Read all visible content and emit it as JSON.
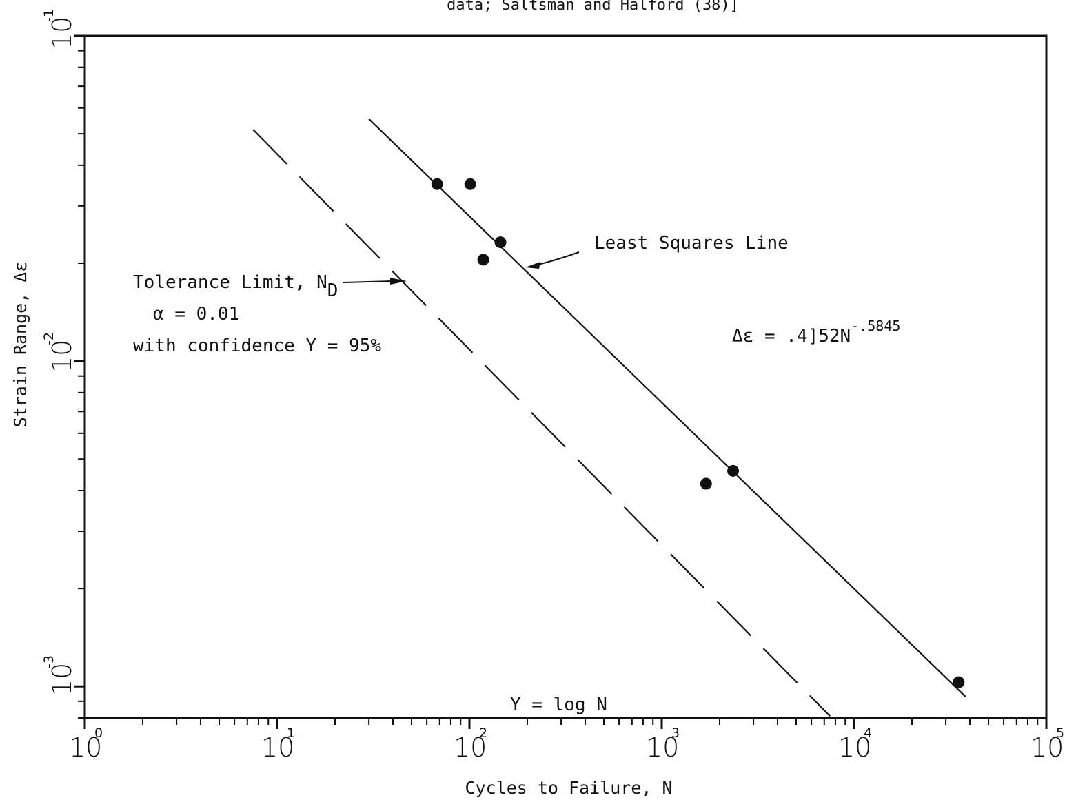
{
  "chart_data": {
    "type": "scatter",
    "title": "data; Saltsman and Halford (38)]",
    "xlabel": "Cycles to Failure, N",
    "ylabel": "Strain Range, Δε",
    "x_scale": "log",
    "y_scale": "log",
    "xlim": [
      1,
      100000
    ],
    "ylim": [
      0.0008,
      0.1
    ],
    "grid": false,
    "x_ticks": [
      {
        "base": "10",
        "exp": "0",
        "value": 1
      },
      {
        "base": "10",
        "exp": "1",
        "value": 10
      },
      {
        "base": "10",
        "exp": "2",
        "value": 100
      },
      {
        "base": "10",
        "exp": "3",
        "value": 1000
      },
      {
        "base": "10",
        "exp": "4",
        "value": 10000
      },
      {
        "base": "10",
        "exp": "5",
        "value": 100000
      }
    ],
    "y_ticks": [
      {
        "base": "10",
        "exp": "-1",
        "value": 0.1
      },
      {
        "base": "10",
        "exp": "-2",
        "value": 0.01
      },
      {
        "base": "10",
        "exp": "-3",
        "value": 0.001
      }
    ],
    "points": [
      {
        "x": 68,
        "y": 0.035
      },
      {
        "x": 101,
        "y": 0.035
      },
      {
        "x": 118,
        "y": 0.0205
      },
      {
        "x": 145,
        "y": 0.0232
      },
      {
        "x": 1700,
        "y": 0.0042
      },
      {
        "x": 2350,
        "y": 0.0046
      },
      {
        "x": 35000,
        "y": 0.00103
      }
    ],
    "lines": [
      {
        "style": "solid",
        "x": [
          30,
          38000
        ],
        "y": [
          0.0555,
          0.00093
        ]
      },
      {
        "style": "dashed",
        "x": [
          7.5,
          7500
        ],
        "y": [
          0.0515,
          0.00081
        ]
      }
    ],
    "annotations": {
      "least_squares": "Least Squares Line",
      "tolerance_text": "Tolerance Limit, N",
      "tolerance_sub": "D",
      "alpha": "α = 0.01",
      "confidence": "with confidence Y = 95%",
      "equation_main": "Δε = .4]52N",
      "equation_exp": "-.5845",
      "y_def": "Y = log N"
    }
  }
}
